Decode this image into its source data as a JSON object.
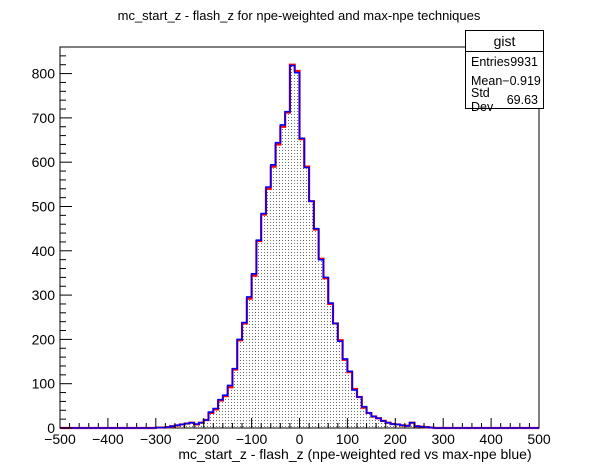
{
  "chart_data": {
    "type": "bar",
    "title": "mc_start_z - flash_z for npe-weighted and max-npe techniques",
    "xlabel": "mc_start_z - flash_z (npe-weighted red vs max-npe blue)",
    "ylabel": "",
    "xlim": [
      -500,
      500
    ],
    "ylim": [
      0,
      860
    ],
    "x_ticks": [
      -500,
      -400,
      -300,
      -200,
      -100,
      0,
      100,
      200,
      300,
      400,
      500
    ],
    "x_tick_labels": [
      "−500",
      "−400",
      "−300",
      "−200",
      "−100",
      "0",
      "100",
      "200",
      "300",
      "400",
      "500"
    ],
    "y_ticks": [
      0,
      100,
      200,
      300,
      400,
      500,
      600,
      700,
      800
    ],
    "y_tick_labels": [
      "0",
      "100",
      "200",
      "300",
      "400",
      "500",
      "600",
      "700",
      "800"
    ],
    "grid": false,
    "bin_width": 10,
    "bin_edges_range": [
      -500,
      500
    ],
    "series": [
      {
        "name": "npe-weighted",
        "color": "#ff0000",
        "fill": "dotted",
        "values": [
          0,
          0,
          0,
          0,
          0,
          0,
          0,
          0,
          0,
          0,
          0,
          0,
          0,
          0,
          0,
          0,
          0,
          0,
          0,
          0,
          1,
          1,
          2,
          4,
          6,
          8,
          10,
          12,
          8,
          12,
          18,
          34,
          42,
          62,
          72,
          92,
          132,
          198,
          236,
          292,
          344,
          422,
          482,
          540,
          590,
          640,
          680,
          712,
          820,
          806,
          652,
          590,
          512,
          448,
          382,
          338,
          280,
          236,
          198,
          154,
          126,
          88,
          70,
          46,
          34,
          26,
          22,
          16,
          12,
          9,
          8,
          6,
          5,
          12,
          4,
          3,
          2,
          1,
          0,
          0,
          0,
          0,
          0,
          0,
          0,
          0,
          0,
          0,
          0,
          0,
          0,
          0,
          0,
          0,
          0,
          0,
          0,
          0,
          0,
          0
        ]
      },
      {
        "name": "max-npe",
        "color": "#0000ff",
        "fill": "none",
        "values": [
          0,
          0,
          0,
          0,
          0,
          0,
          0,
          0,
          0,
          0,
          0,
          0,
          0,
          0,
          0,
          0,
          0,
          0,
          0,
          0,
          1,
          1,
          2,
          4,
          6,
          8,
          10,
          12,
          9,
          12,
          18,
          36,
          44,
          64,
          74,
          96,
          134,
          200,
          238,
          296,
          348,
          424,
          484,
          544,
          594,
          644,
          684,
          714,
          818,
          802,
          654,
          588,
          512,
          450,
          380,
          340,
          282,
          236,
          196,
          156,
          128,
          86,
          70,
          48,
          34,
          26,
          22,
          16,
          12,
          9,
          8,
          6,
          5,
          12,
          4,
          3,
          2,
          1,
          0,
          0,
          0,
          0,
          0,
          0,
          0,
          0,
          0,
          0,
          0,
          0,
          0,
          0,
          0,
          0,
          0,
          0,
          0,
          0,
          0,
          0
        ]
      }
    ],
    "stats": {
      "name": "gist",
      "entries_label": "Entries",
      "entries": "9931",
      "mean_label": "Mean",
      "mean": "−0.919",
      "std_label": "Std Dev",
      "std": "69.63"
    }
  }
}
